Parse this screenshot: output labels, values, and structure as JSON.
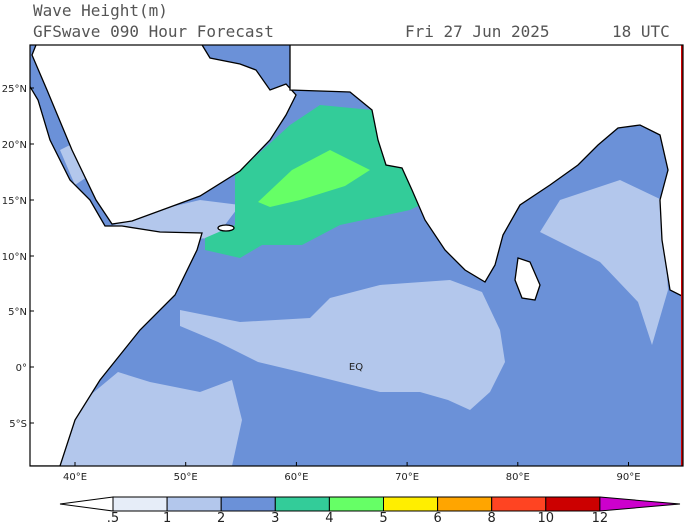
{
  "header": {
    "title": "Wave Height(m)",
    "subtitle": "GFSwave 090 Hour Forecast",
    "date": "Fri 27 Jun 2025",
    "time": "18 UTC"
  },
  "map": {
    "lat_labels": [
      "25°N",
      "20°N",
      "15°N",
      "10°N",
      "5°N",
      "0°",
      "EQ",
      "5°S"
    ],
    "lon_labels": [
      "40°E",
      "50°E",
      "60°E",
      "70°E",
      "80°E",
      "90°E"
    ]
  },
  "colorbar": {
    "levels": [
      {
        "value": 0.5,
        "label": ".5"
      },
      1,
      2,
      3,
      4,
      5,
      6,
      8,
      10,
      12
    ],
    "colors": [
      "#ffffff",
      "#e6edf8",
      "#b3c7ec",
      "#6b91d8",
      "#33cc99",
      "#66ff66",
      "#ffee00",
      "#ffa500",
      "#ff4422",
      "#cc0000",
      "#cc00cc"
    ]
  }
}
